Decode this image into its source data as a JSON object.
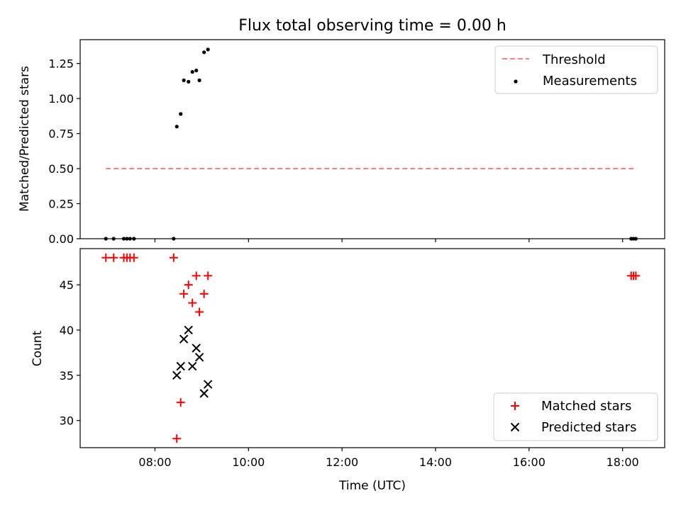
{
  "chart_data": [
    {
      "type": "scatter",
      "title": "Flux total observing time = 0.00 h",
      "ylabel": "Matched/Predicted stars",
      "xlim": [
        "06:24",
        "18:54"
      ],
      "ylim": [
        0,
        1.42
      ],
      "yticks": [
        "0.00",
        "0.25",
        "0.50",
        "0.75",
        "1.00",
        "1.25"
      ],
      "legend_position": "top-right",
      "threshold": {
        "name": "Threshold",
        "value": 0.5,
        "x_start": "06:57",
        "x_end": "18:18",
        "color": "#ff7f7f",
        "style": "dashed"
      },
      "series": [
        {
          "name": "Measurements",
          "color": "#000000",
          "marker": "dot",
          "points": [
            [
              "06:57",
              0
            ],
            [
              "07:07",
              0
            ],
            [
              "07:20",
              0
            ],
            [
              "07:24",
              0
            ],
            [
              "07:28",
              0
            ],
            [
              "07:33",
              0
            ],
            [
              "08:24",
              0
            ],
            [
              "08:28",
              0.8
            ],
            [
              "08:33",
              0.89
            ],
            [
              "08:37",
              1.13
            ],
            [
              "08:43",
              1.12
            ],
            [
              "08:48",
              1.19
            ],
            [
              "08:53",
              1.2
            ],
            [
              "08:57",
              1.13
            ],
            [
              "09:03",
              1.33
            ],
            [
              "09:08",
              1.35
            ],
            [
              "18:11",
              0
            ],
            [
              "18:14",
              0
            ],
            [
              "18:17",
              0
            ]
          ]
        }
      ]
    },
    {
      "type": "scatter",
      "xlabel": "Time (UTC)",
      "ylabel": "Count",
      "xlim": [
        "06:24",
        "18:54"
      ],
      "ylim": [
        27,
        49
      ],
      "xticks": [
        "08:00",
        "10:00",
        "12:00",
        "14:00",
        "16:00",
        "18:00"
      ],
      "yticks": [
        30,
        35,
        40,
        45
      ],
      "legend_position": "bottom-right",
      "series": [
        {
          "name": "Matched stars",
          "color": "#ff0000",
          "marker": "plus",
          "points": [
            [
              "06:57",
              48
            ],
            [
              "07:07",
              48
            ],
            [
              "07:20",
              48
            ],
            [
              "07:24",
              48
            ],
            [
              "07:28",
              48
            ],
            [
              "07:33",
              48
            ],
            [
              "08:24",
              48
            ],
            [
              "08:28",
              28
            ],
            [
              "08:33",
              32
            ],
            [
              "08:37",
              44
            ],
            [
              "08:43",
              45
            ],
            [
              "08:48",
              43
            ],
            [
              "08:53",
              46
            ],
            [
              "08:57",
              42
            ],
            [
              "09:03",
              44
            ],
            [
              "09:08",
              46
            ],
            [
              "18:11",
              46
            ],
            [
              "18:14",
              46
            ],
            [
              "18:17",
              46
            ]
          ]
        },
        {
          "name": "Predicted stars",
          "color": "#000000",
          "marker": "x",
          "points": [
            [
              "08:28",
              35
            ],
            [
              "08:33",
              36
            ],
            [
              "08:37",
              39
            ],
            [
              "08:43",
              40
            ],
            [
              "08:48",
              36
            ],
            [
              "08:53",
              38
            ],
            [
              "08:57",
              37
            ],
            [
              "09:03",
              33
            ],
            [
              "09:08",
              34
            ]
          ]
        }
      ]
    }
  ]
}
